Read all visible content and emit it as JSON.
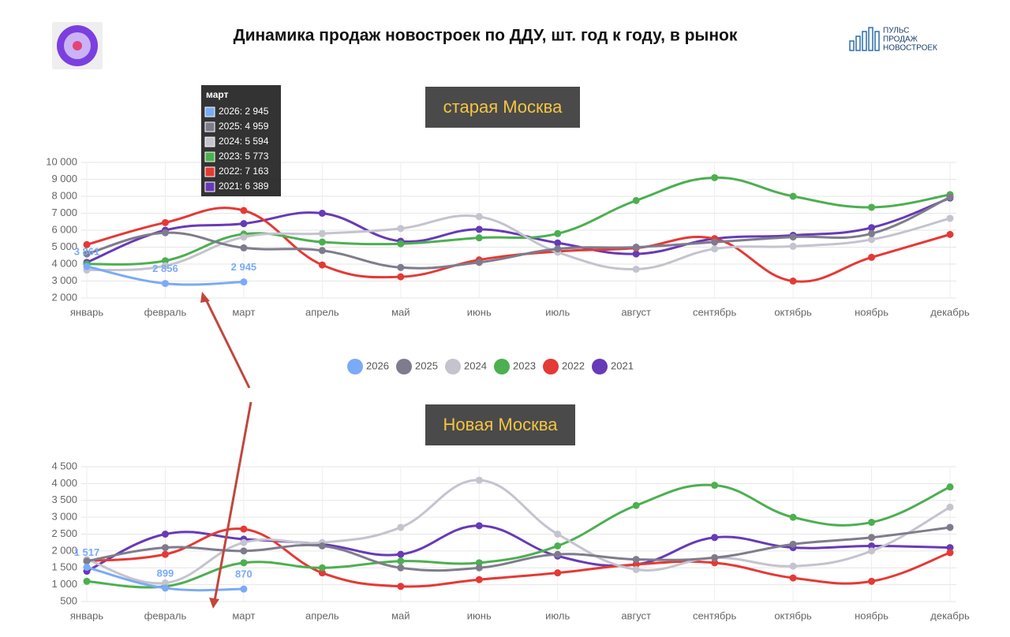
{
  "header": {
    "title": "Динамика продаж новостроек по ДДУ, шт. год к году, в рынок",
    "logo": [
      "ПУЛЬС",
      "ПРОДАЖ",
      "НОВОСТРОЕК"
    ]
  },
  "tooltip": {
    "title": "март",
    "items": [
      "2026: 2 945",
      "2025: 4 959",
      "2024: 5 594",
      "2023: 5 773",
      "2022: 7 163",
      "2021: 6 389"
    ]
  },
  "chart_data": [
    {
      "type": "line",
      "title": "старая Москва",
      "categories": [
        "январь",
        "февраль",
        "март",
        "апрель",
        "май",
        "июнь",
        "июль",
        "август",
        "сентябрь",
        "октябрь",
        "ноябрь",
        "декабрь"
      ],
      "ylim": [
        2000,
        10000
      ],
      "yticks": [
        {
          "value": 2000,
          "label": "2 000"
        },
        {
          "value": 3000,
          "label": "3 000"
        },
        {
          "value": 4000,
          "label": "4 000"
        },
        {
          "value": 5000,
          "label": "5 000"
        },
        {
          "value": 6000,
          "label": "6 000"
        },
        {
          "value": 7000,
          "label": "7 000"
        },
        {
          "value": 8000,
          "label": "8 000"
        },
        {
          "value": 9000,
          "label": "9 000"
        },
        {
          "value": 10000,
          "label": "10 000"
        }
      ],
      "grid": true,
      "series": [
        {
          "name": "2026",
          "color": "#7baaf7",
          "values": [
            3861,
            2856,
            2945,
            null,
            null,
            null,
            null,
            null,
            null,
            null,
            null,
            null
          ],
          "value_labels": [
            "3 861",
            "2 856",
            "2 945",
            null,
            null,
            null,
            null,
            null,
            null,
            null,
            null,
            null
          ]
        },
        {
          "name": "2025",
          "color": "#7e7c8c",
          "values": [
            4600,
            5850,
            4959,
            4800,
            3800,
            4100,
            4900,
            5000,
            5300,
            5600,
            5800,
            7950
          ]
        },
        {
          "name": "2024",
          "color": "#c4c3ce",
          "values": [
            3650,
            3900,
            5594,
            5800,
            6100,
            6800,
            4700,
            3700,
            4900,
            5050,
            5450,
            6700
          ]
        },
        {
          "name": "2023",
          "color": "#4caf50",
          "values": [
            4000,
            4200,
            5773,
            5300,
            5200,
            5550,
            5800,
            7750,
            9100,
            8000,
            7350,
            8100
          ]
        },
        {
          "name": "2022",
          "color": "#e53935",
          "values": [
            5150,
            6450,
            7163,
            3950,
            3250,
            4250,
            4750,
            4950,
            5500,
            3000,
            4400,
            5750
          ]
        },
        {
          "name": "2021",
          "color": "#673ab7",
          "values": [
            4100,
            6000,
            6389,
            7000,
            5350,
            6050,
            5250,
            4600,
            5500,
            5700,
            6150,
            7900
          ]
        }
      ]
    },
    {
      "type": "line",
      "title": "Новая Москва",
      "categories": [
        "январь",
        "февраль",
        "март",
        "апрель",
        "май",
        "июнь",
        "июль",
        "август",
        "сентябрь",
        "октябрь",
        "ноябрь",
        "декабрь"
      ],
      "ylim": [
        500,
        4500
      ],
      "yticks": [
        500,
        {
          "value": 1000,
          "label": "1 000"
        },
        {
          "value": 1500,
          "label": "1 500"
        },
        {
          "value": 2000,
          "label": "2 000"
        },
        {
          "value": 2500,
          "label": "2 500"
        },
        {
          "value": 3000,
          "label": "3 000"
        },
        {
          "value": 3500,
          "label": "3 500"
        },
        {
          "value": 4000,
          "label": "4 000"
        },
        {
          "value": 4500,
          "label": "4 500"
        }
      ],
      "grid": true,
      "series": [
        {
          "color": "#7baaf7",
          "values": [
            1517,
            899,
            870,
            null,
            null,
            null,
            null,
            null,
            null,
            null,
            null,
            null
          ],
          "value_labels": [
            "1 517",
            "899",
            "870",
            null,
            null,
            null,
            null,
            null,
            null,
            null,
            null,
            null
          ]
        },
        {
          "color": "#7e7c8c",
          "values": [
            1700,
            2100,
            2000,
            2150,
            1500,
            1500,
            1900,
            1750,
            1800,
            2200,
            2400,
            2700
          ]
        },
        {
          "color": "#c4c3ce",
          "values": [
            1750,
            1050,
            2250,
            2250,
            2700,
            4100,
            2500,
            1450,
            1800,
            1550,
            2000,
            3300
          ]
        },
        {
          "color": "#4caf50",
          "values": [
            1100,
            950,
            1650,
            1500,
            1700,
            1650,
            2150,
            3350,
            3950,
            3000,
            2850,
            3900
          ]
        },
        {
          "color": "#e53935",
          "values": [
            1700,
            1900,
            2650,
            1350,
            950,
            1150,
            1350,
            1600,
            1650,
            1200,
            1100,
            1950
          ]
        },
        {
          "color": "#673ab7",
          "values": [
            1400,
            2500,
            2350,
            2200,
            1900,
            2750,
            1850,
            1600,
            2400,
            2100,
            2150,
            2100
          ]
        }
      ]
    }
  ]
}
